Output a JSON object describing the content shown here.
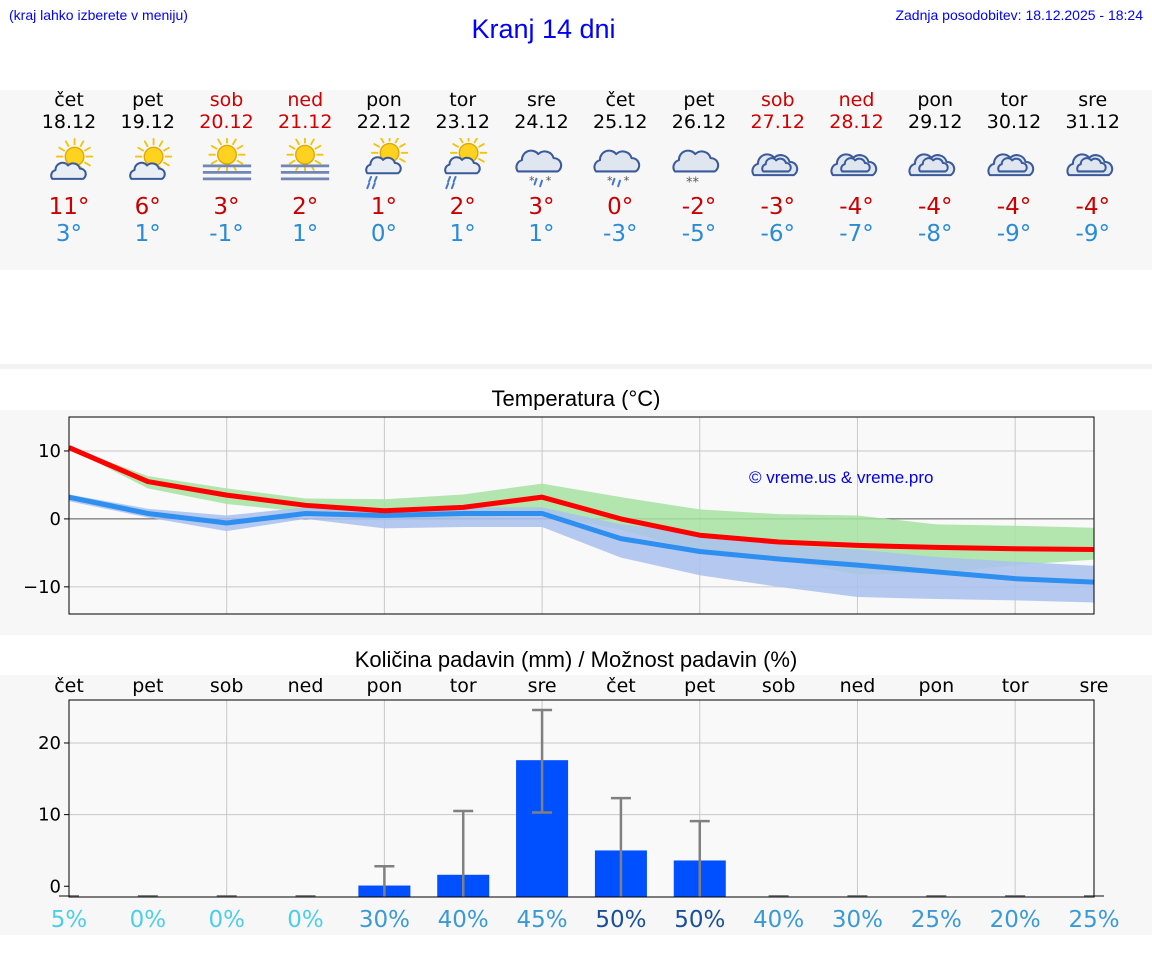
{
  "header": {
    "menu_hint": "(kraj lahko izberete v meniju)",
    "title": "Kranj 14 dni",
    "updated": "Zadnja posodobitev: 18.12.2025 - 18:24"
  },
  "days": [
    {
      "name": "čet",
      "date": "18.12",
      "weekend": false,
      "icon": "sun-cloud-icon",
      "max": "11°",
      "min": "3°"
    },
    {
      "name": "pet",
      "date": "19.12",
      "weekend": false,
      "icon": "sun-cloud-icon",
      "max": "6°",
      "min": "1°"
    },
    {
      "name": "sob",
      "date": "20.12",
      "weekend": true,
      "icon": "sun-fog-icon",
      "max": "3°",
      "min": "-1°"
    },
    {
      "name": "ned",
      "date": "21.12",
      "weekend": true,
      "icon": "sun-fog-icon",
      "max": "2°",
      "min": "1°"
    },
    {
      "name": "pon",
      "date": "22.12",
      "weekend": false,
      "icon": "sun-cloud-rain-icon",
      "max": "1°",
      "min": "0°"
    },
    {
      "name": "tor",
      "date": "23.12",
      "weekend": false,
      "icon": "sun-cloud-rain-icon",
      "max": "2°",
      "min": "1°"
    },
    {
      "name": "sre",
      "date": "24.12",
      "weekend": false,
      "icon": "cloud-sleet-icon",
      "max": "3°",
      "min": "1°"
    },
    {
      "name": "čet",
      "date": "25.12",
      "weekend": false,
      "icon": "cloud-sleet-icon",
      "max": "0°",
      "min": "-3°"
    },
    {
      "name": "pet",
      "date": "26.12",
      "weekend": false,
      "icon": "cloud-snow-icon",
      "max": "-2°",
      "min": "-5°"
    },
    {
      "name": "sob",
      "date": "27.12",
      "weekend": true,
      "icon": "cloud-icon",
      "max": "-3°",
      "min": "-6°"
    },
    {
      "name": "ned",
      "date": "28.12",
      "weekend": true,
      "icon": "cloud-icon",
      "max": "-4°",
      "min": "-7°"
    },
    {
      "name": "pon",
      "date": "29.12",
      "weekend": false,
      "icon": "cloud-icon",
      "max": "-4°",
      "min": "-8°"
    },
    {
      "name": "tor",
      "date": "30.12",
      "weekend": false,
      "icon": "cloud-icon",
      "max": "-4°",
      "min": "-9°"
    },
    {
      "name": "sre",
      "date": "31.12",
      "weekend": false,
      "icon": "cloud-icon",
      "max": "-4°",
      "min": "-9°"
    }
  ],
  "colors": {
    "weekend": "#d00000",
    "max_temp": "#c80000",
    "min_temp": "#2a8bd6",
    "max_line": "#ff0000",
    "min_line": "#2e8ff0",
    "max_band": "#a6e3a1",
    "min_band": "#a9c1ef",
    "bar": "#0050ff",
    "error_bar": "#808080"
  },
  "chart_data": [
    {
      "type": "line",
      "title": "Temperatura (°C)",
      "credit": "© vreme.us & vreme.pro",
      "x": [
        "18.12",
        "19.12",
        "20.12",
        "21.12",
        "22.12",
        "23.12",
        "24.12",
        "25.12",
        "26.12",
        "27.12",
        "28.12",
        "29.12",
        "30.12",
        "31.12"
      ],
      "ylim": [
        -14,
        15
      ],
      "yticks": [
        10,
        0,
        -10
      ],
      "ytick_labels": [
        "10",
        "0",
        "−10"
      ],
      "grid": true,
      "series": [
        {
          "name": "max",
          "values": [
            10.5,
            5.5,
            3.5,
            2,
            1.2,
            1.7,
            3.2,
            0,
            -2.4,
            -3.4,
            -3.9,
            -4.2,
            -4.4,
            -4.5
          ],
          "band_low": [
            10.4,
            4.5,
            2.2,
            1.0,
            0.0,
            0.1,
            0.7,
            -1.6,
            -4.8,
            -6.0,
            -8.2,
            -8.0,
            -6.8,
            -6.0
          ],
          "band_high": [
            10.6,
            6.3,
            4.5,
            3.0,
            2.9,
            3.6,
            5.2,
            3.2,
            1.4,
            0.7,
            0.5,
            -0.8,
            -1.0,
            -1.3
          ]
        },
        {
          "name": "min",
          "values": [
            3.2,
            0.8,
            -0.6,
            0.8,
            0.5,
            0.8,
            0.8,
            -2.9,
            -4.8,
            -5.9,
            -6.8,
            -7.8,
            -8.8,
            -9.3
          ],
          "band_low": [
            2.6,
            0.2,
            -1.8,
            0.0,
            -1.4,
            -1.2,
            -1.2,
            -5.7,
            -8.3,
            -10.0,
            -11.5,
            -11.8,
            -12.0,
            -12.3
          ],
          "band_high": [
            3.6,
            1.5,
            0.5,
            1.7,
            1.4,
            1.7,
            1.7,
            -0.8,
            -2.1,
            -3.8,
            -4.5,
            -5.6,
            -6.3,
            -6.9
          ]
        }
      ]
    },
    {
      "type": "bar",
      "title": "Količina padavin (mm) / Možnost padavin (%)",
      "categories": [
        "čet",
        "pet",
        "sob",
        "ned",
        "pon",
        "tor",
        "sre",
        "čet",
        "pet",
        "sob",
        "ned",
        "pon",
        "tor",
        "sre"
      ],
      "values": [
        0,
        0,
        0,
        0,
        0.1,
        1.6,
        17.6,
        5.0,
        3.6,
        0,
        0,
        0,
        0,
        0
      ],
      "error_low": [
        0,
        0,
        0,
        0,
        0,
        0,
        10.3,
        0,
        0,
        0,
        0,
        0,
        0,
        0
      ],
      "error_high": [
        0,
        0,
        0,
        0,
        2.8,
        10.5,
        24.6,
        12.3,
        9.1,
        0,
        0,
        0,
        0,
        0
      ],
      "probability": [
        "5%",
        "0%",
        "0%",
        "0%",
        "30%",
        "40%",
        "45%",
        "50%",
        "50%",
        "40%",
        "30%",
        "25%",
        "20%",
        "25%"
      ],
      "probability_colors": [
        "#4dcfe8",
        "#4dcfe8",
        "#4dcfe8",
        "#4dcfe8",
        "#3a9ad6",
        "#3a9ad6",
        "#3a9ad6",
        "#1a4f9c",
        "#1a4f9c",
        "#3a9ad6",
        "#3a9ad6",
        "#3a9ad6",
        "#3a9ad6",
        "#3a9ad6"
      ],
      "ylim": [
        -1.5,
        26
      ],
      "yticks": [
        20,
        10,
        0
      ],
      "ytick_labels": [
        "20",
        "10",
        "0"
      ],
      "grid": true
    }
  ]
}
